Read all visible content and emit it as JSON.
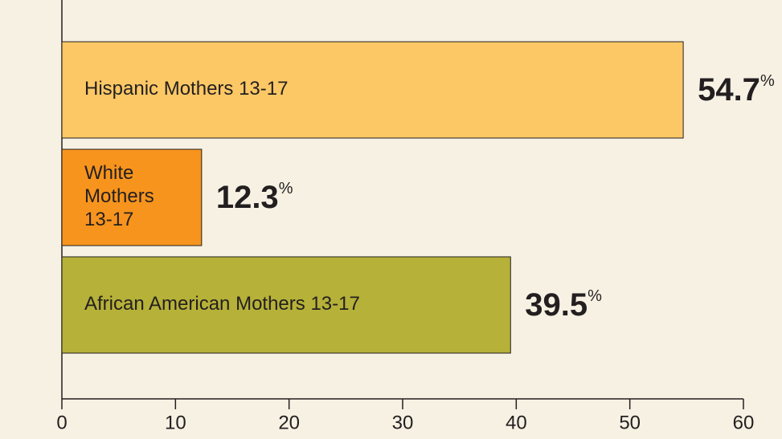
{
  "chart_data": {
    "type": "barh",
    "categories": [
      "Hispanic Mothers 13-17",
      "White Mothers 13-17",
      "African American Mothers 13-17"
    ],
    "values": [
      54.7,
      12.3,
      39.5
    ],
    "value_labels": [
      "54.7%",
      "12.3%",
      "39.5%"
    ],
    "colors": [
      "#fcc865",
      "#f7941d",
      "#b6b138"
    ],
    "xlim": [
      0,
      60
    ],
    "xticks": [
      0,
      10,
      20,
      30,
      40,
      50,
      60
    ]
  }
}
